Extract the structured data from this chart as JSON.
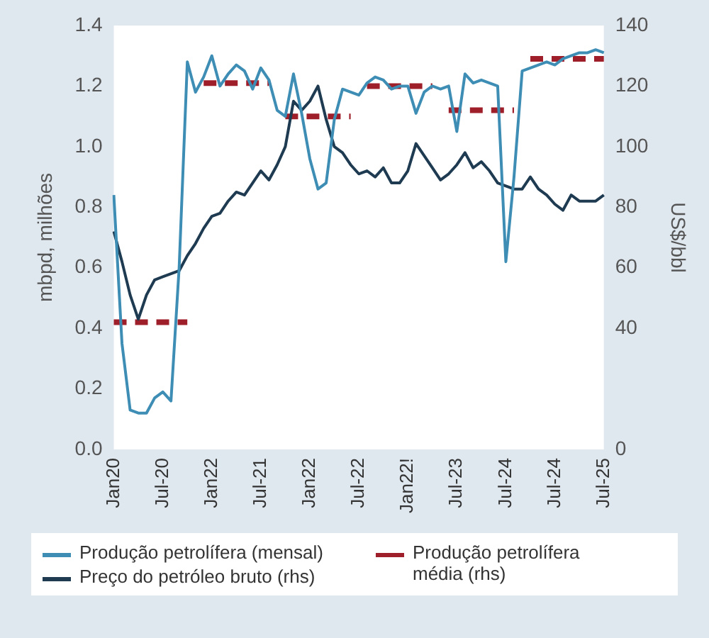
{
  "chart_data": {
    "type": "line",
    "categories": [
      "Jan20",
      null,
      null,
      null,
      null,
      null,
      "Jul-20",
      null,
      null,
      null,
      null,
      null,
      "Jan22",
      null,
      null,
      null,
      null,
      null,
      "Jul-21",
      null,
      null,
      null,
      null,
      null,
      "Jan22",
      null,
      null,
      null,
      null,
      null,
      "Jul-22",
      null,
      null,
      null,
      null,
      null,
      "Jan22!",
      null,
      null,
      null,
      null,
      null,
      "Jul-23",
      null,
      null,
      null,
      null,
      null,
      "Jul-24",
      null,
      null,
      null,
      null,
      null,
      "Jul-24",
      null,
      null,
      null,
      null,
      null,
      "Jul-25"
    ],
    "ylabel": "mbpd, milhões",
    "y2label": "US$/bbl",
    "ylim": [
      0,
      1.4
    ],
    "yticks": [
      {
        "value": 0,
        "label": "0.0"
      },
      0.2,
      0.4,
      0.6,
      0.8,
      {
        "value": 1,
        "label": "1.0"
      },
      1.2,
      1.4
    ],
    "y2lim": [
      0,
      140
    ],
    "y2ticks": [
      0,
      40,
      60,
      80,
      100,
      120,
      140
    ],
    "series": [
      {
        "name": "Produção petrolífera (mensal)",
        "color": "#3d8db5",
        "values": [
          0.84,
          0.35,
          0.13,
          0.12,
          0.12,
          0.17,
          0.19,
          0.16,
          0.6,
          1.28,
          1.18,
          1.23,
          1.3,
          1.2,
          1.24,
          1.27,
          1.25,
          1.19,
          1.26,
          1.22,
          1.12,
          1.1,
          1.24,
          1.11,
          0.96,
          0.86,
          0.88,
          1.09,
          1.19,
          1.18,
          1.17,
          1.21,
          1.23,
          1.22,
          1.19,
          1.2,
          1.2,
          1.11,
          1.18,
          1.2,
          1.19,
          1.2,
          1.05,
          1.24,
          1.21,
          1.22,
          1.21,
          1.2,
          0.62,
          0.9,
          1.25,
          1.26,
          1.27,
          1.28,
          1.27,
          1.29,
          1.3,
          1.31,
          1.31,
          1.32,
          1.31
        ]
      },
      {
        "name": "Preço do petróleo bruto (rhs)",
        "axis": "y2",
        "color": "#1e3b52",
        "values": [
          72,
          62,
          51,
          43,
          51,
          56,
          57,
          58,
          59,
          64,
          68,
          73,
          77,
          78,
          82,
          85,
          84,
          88,
          92,
          89,
          94,
          100,
          115,
          112,
          115,
          120,
          109,
          100,
          98,
          94,
          91,
          92,
          90,
          93,
          88,
          88,
          92,
          101,
          97,
          93,
          89,
          91,
          94,
          98,
          93,
          95,
          92,
          88,
          87,
          86,
          86,
          90,
          86,
          84,
          81,
          79,
          84,
          82,
          82,
          82,
          84
        ]
      },
      {
        "name": "Produção petrolífera média (rhs)",
        "line_style": "dashed",
        "color": "#9e1f2a",
        "values": [
          0.42,
          0.42,
          0.42,
          0.42,
          0.42,
          0.42,
          0.42,
          0.42,
          0.42,
          0.42,
          null,
          1.21,
          1.21,
          1.21,
          1.21,
          1.21,
          1.21,
          1.21,
          1.21,
          1.21,
          null,
          1.1,
          1.1,
          1.1,
          1.1,
          1.1,
          1.1,
          1.1,
          1.1,
          1.1,
          null,
          1.2,
          1.2,
          1.2,
          1.2,
          1.2,
          1.2,
          1.2,
          1.2,
          1.2,
          null,
          1.12,
          1.12,
          1.12,
          1.12,
          1.12,
          1.12,
          1.12,
          1.12,
          1.12,
          null,
          1.29,
          1.29,
          1.29,
          1.29,
          1.29,
          1.29,
          1.29,
          1.29,
          1.29,
          1.29
        ]
      }
    ],
    "grid": false,
    "legend": "bottom"
  }
}
